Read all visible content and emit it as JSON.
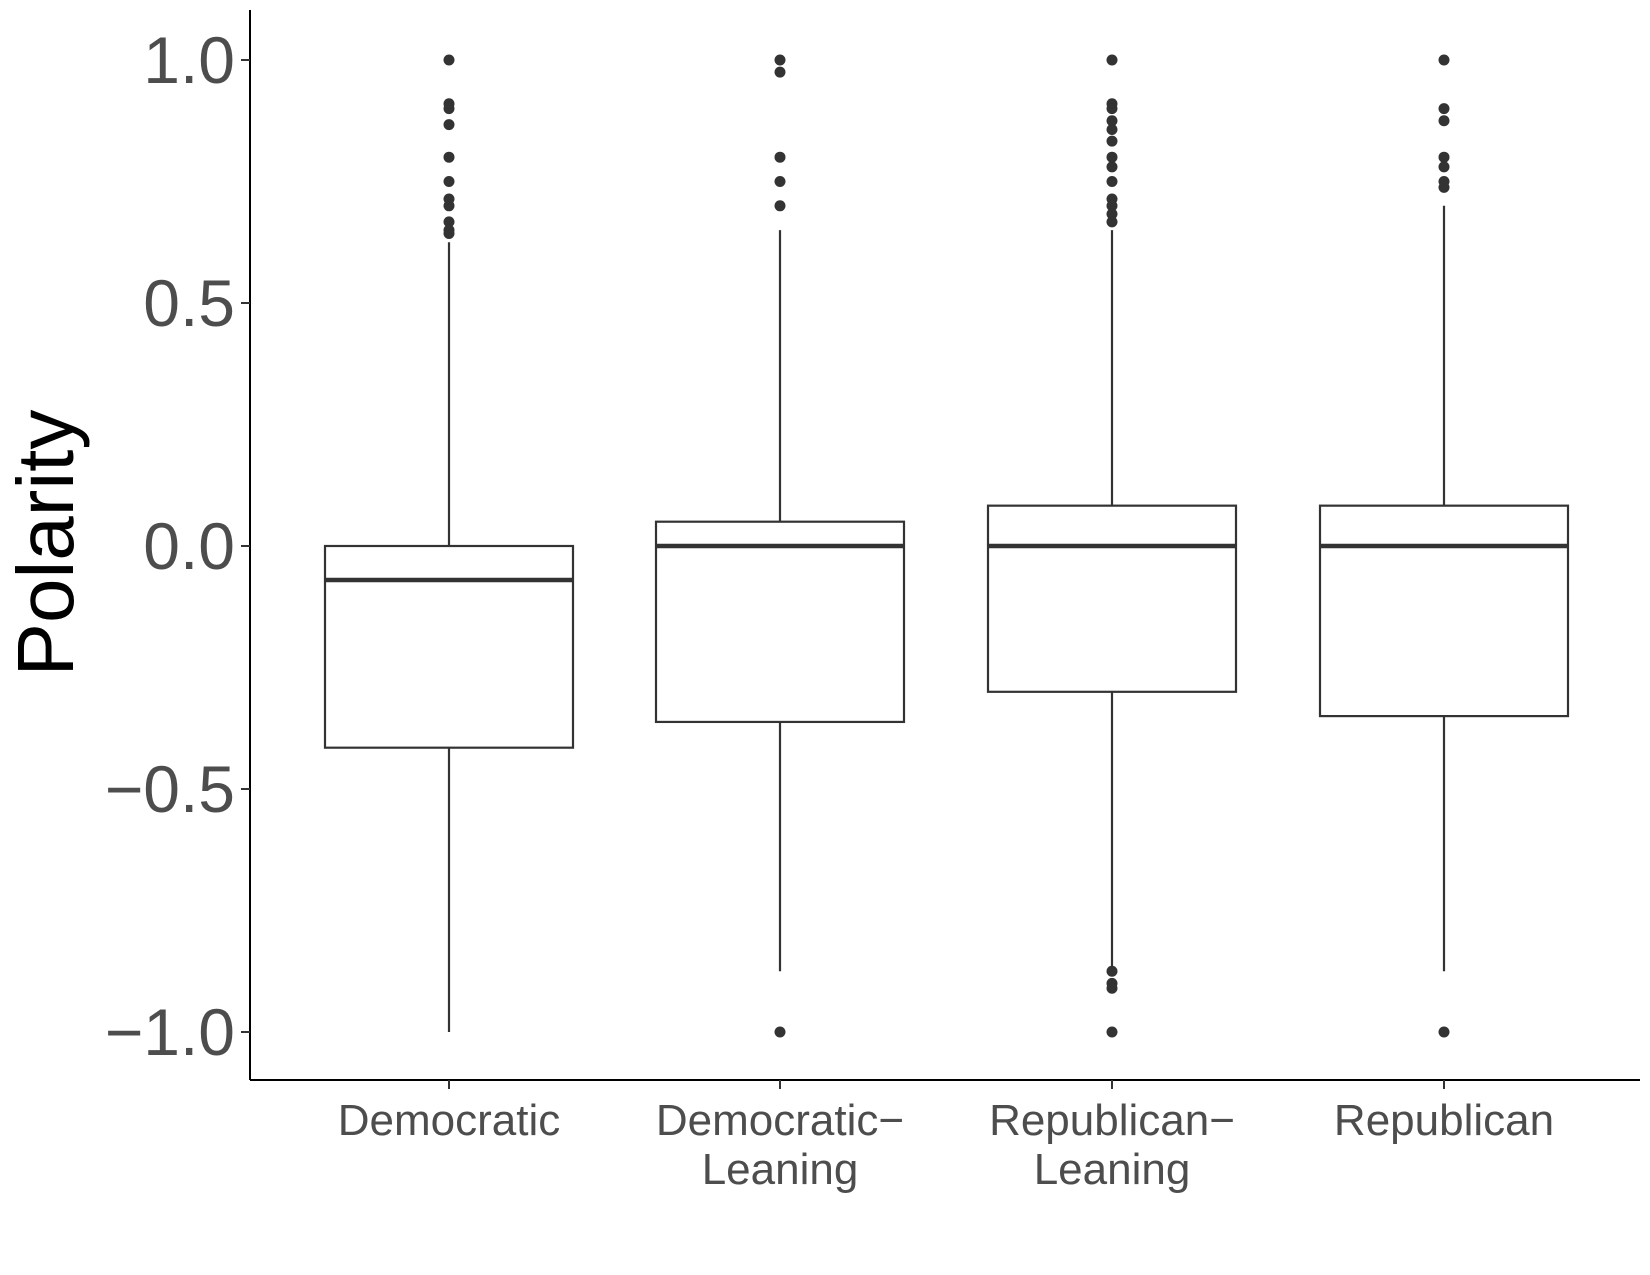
{
  "chart_data": {
    "type": "box",
    "ylabel": "Polarity",
    "xlabel": "",
    "ylim": [
      -1.1,
      1.1
    ],
    "y_ticks": [
      1.0,
      0.5,
      0.0,
      -0.5,
      -1.0
    ],
    "y_tick_labels": [
      "1.0",
      "0.5",
      "0.0",
      "−0.5",
      "−1.0"
    ],
    "grid": false,
    "categories": [
      {
        "label_lines": [
          "Democratic"
        ]
      },
      {
        "label_lines": [
          "Democratic−",
          "Leaning"
        ]
      },
      {
        "label_lines": [
          "Republican−",
          "Leaning"
        ]
      },
      {
        "label_lines": [
          "Republican"
        ]
      }
    ],
    "boxes": [
      {
        "q1": -0.415,
        "median": -0.07,
        "q3": 0.0,
        "whisker_low": -1.0,
        "whisker_high": 0.625,
        "outliers": [
          1.0,
          0.91,
          0.9,
          0.867,
          0.8,
          0.75,
          0.714,
          0.7,
          0.667,
          0.65,
          0.643
        ]
      },
      {
        "q1": -0.362,
        "median": 0.0,
        "q3": 0.05,
        "whisker_low": -0.875,
        "whisker_high": 0.65,
        "outliers": [
          1.0,
          0.975,
          0.8,
          0.75,
          0.7,
          -1.0
        ]
      },
      {
        "q1": -0.3,
        "median": 0.0,
        "q3": 0.083,
        "whisker_low": -0.875,
        "whisker_high": 0.65,
        "outliers": [
          1.0,
          0.91,
          0.9,
          0.875,
          0.857,
          0.833,
          0.8,
          0.78,
          0.75,
          0.714,
          0.7,
          0.683,
          0.667,
          -0.875,
          -0.9,
          -0.91,
          -1.0
        ]
      },
      {
        "q1": -0.35,
        "median": 0.0,
        "q3": 0.083,
        "whisker_low": -0.875,
        "whisker_high": 0.7,
        "outliers": [
          1.0,
          0.9,
          0.875,
          0.8,
          0.78,
          0.75,
          0.738,
          -1.0
        ]
      }
    ]
  }
}
